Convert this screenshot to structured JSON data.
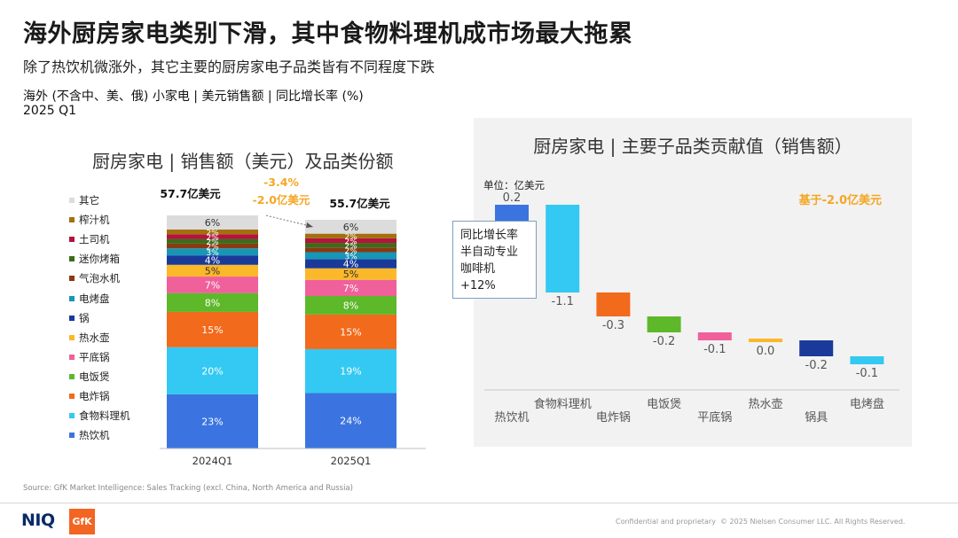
{
  "header": {
    "title": "海外厨房家电类别下滑，其中食物料理机成市场最大拖累",
    "subtitle": "除了热饮机微涨外，其它主要的厨房家电子品类皆有不同程度下跌",
    "scope": "海外 (不含中、美、俄) 小家电 | 美元销售额 | 同比增长率 (%)",
    "period": "2025 Q1"
  },
  "chart_data": [
    {
      "type": "bar",
      "subtype": "stacked-100",
      "title": "厨房家电 | 销售额（美元）及品类份额",
      "categories": [
        "2024Q1",
        "2025Q1"
      ],
      "totals": [
        "57.7亿美元",
        "55.7亿美元"
      ],
      "change": [
        "-3.4%",
        "-2.0亿美元"
      ],
      "series": [
        {
          "name": "热饮机",
          "color": "#3b74e0",
          "values": [
            23,
            24
          ],
          "labels": [
            "23%",
            "24%"
          ]
        },
        {
          "name": "食物料理机",
          "color": "#33c9f2",
          "values": [
            20,
            19
          ],
          "labels": [
            "20%",
            "19%"
          ]
        },
        {
          "name": "电炸锅",
          "color": "#f26a1b",
          "values": [
            15,
            15
          ],
          "labels": [
            "15%",
            "15%"
          ]
        },
        {
          "name": "电饭煲",
          "color": "#5db82a",
          "values": [
            8,
            8
          ],
          "labels": [
            "8%",
            "8%"
          ]
        },
        {
          "name": "平底锅",
          "color": "#f0609a",
          "values": [
            7,
            7
          ],
          "labels": [
            "7%",
            "7%"
          ]
        },
        {
          "name": "热水壶",
          "color": "#fbb829",
          "values": [
            5,
            5
          ],
          "labels": [
            "5%",
            "5%"
          ]
        },
        {
          "name": "锅",
          "color": "#1a3a9a",
          "values": [
            4,
            4
          ],
          "labels": [
            "4%",
            "4%"
          ]
        },
        {
          "name": "电烤盘",
          "color": "#1796b5",
          "values": [
            3,
            3
          ],
          "labels": [
            "3%",
            "3%"
          ]
        },
        {
          "name": "气泡水机",
          "color": "#8a3a12",
          "values": [
            2,
            2
          ],
          "labels": [
            "2%",
            "2%"
          ]
        },
        {
          "name": "迷你烤箱",
          "color": "#3c6b1a",
          "values": [
            2,
            2
          ],
          "labels": [
            "2%",
            "2%"
          ]
        },
        {
          "name": "土司机",
          "color": "#b5123d",
          "values": [
            2,
            2
          ],
          "labels": [
            "2%",
            "2%"
          ]
        },
        {
          "name": "榨汁机",
          "color": "#a3700d",
          "values": [
            2,
            2
          ],
          "labels": [
            "2%",
            "2%"
          ]
        },
        {
          "name": "其它",
          "color": "#dcdcdc",
          "values": [
            6,
            6
          ],
          "labels": [
            "6%",
            "6%"
          ]
        }
      ],
      "legend_order": [
        "其它",
        "榨汁机",
        "土司机",
        "迷你烤箱",
        "气泡水机",
        "电烤盘",
        "锅",
        "热水壶",
        "平底锅",
        "电饭煲",
        "电炸锅",
        "食物料理机",
        "热饮机"
      ],
      "legend_position": "left"
    },
    {
      "type": "bar",
      "subtype": "waterfall",
      "title": "厨房家电 | 主要子品类贡献值（销售额）",
      "unit": "单位：亿美元",
      "base_note": "基于-2.0亿美元",
      "categories": [
        "热饮机",
        "食物料理机",
        "电炸锅",
        "电饭煲",
        "平底锅",
        "热水壶",
        "锅具",
        "电烤盘"
      ],
      "values": [
        0.2,
        -1.1,
        -0.3,
        -0.2,
        -0.1,
        0.0,
        -0.2,
        -0.1
      ],
      "labels": [
        "0.2",
        "-1.1",
        "-0.3",
        "-0.2",
        "-0.1",
        "0.0",
        "-0.2",
        "-0.1"
      ],
      "colors": [
        "#3b74e0",
        "#33c9f2",
        "#f26a1b",
        "#5db82a",
        "#f0609a",
        "#fbb829",
        "#1a3a9a",
        "#33c9f2"
      ],
      "callout": [
        "同比增长率",
        "半自动专业",
        "咖啡机",
        "+12%"
      ]
    }
  ],
  "footer": {
    "source": "Source: GfK Market Intelligence: Sales Tracking (excl. China, North America and Russia)",
    "confidential": "Confidential and proprietary",
    "copyright": "© 2025 Nielsen Consumer LLC. All Rights Reserved.",
    "logo_niq": "NIQ",
    "logo_gfk": "GfK"
  }
}
